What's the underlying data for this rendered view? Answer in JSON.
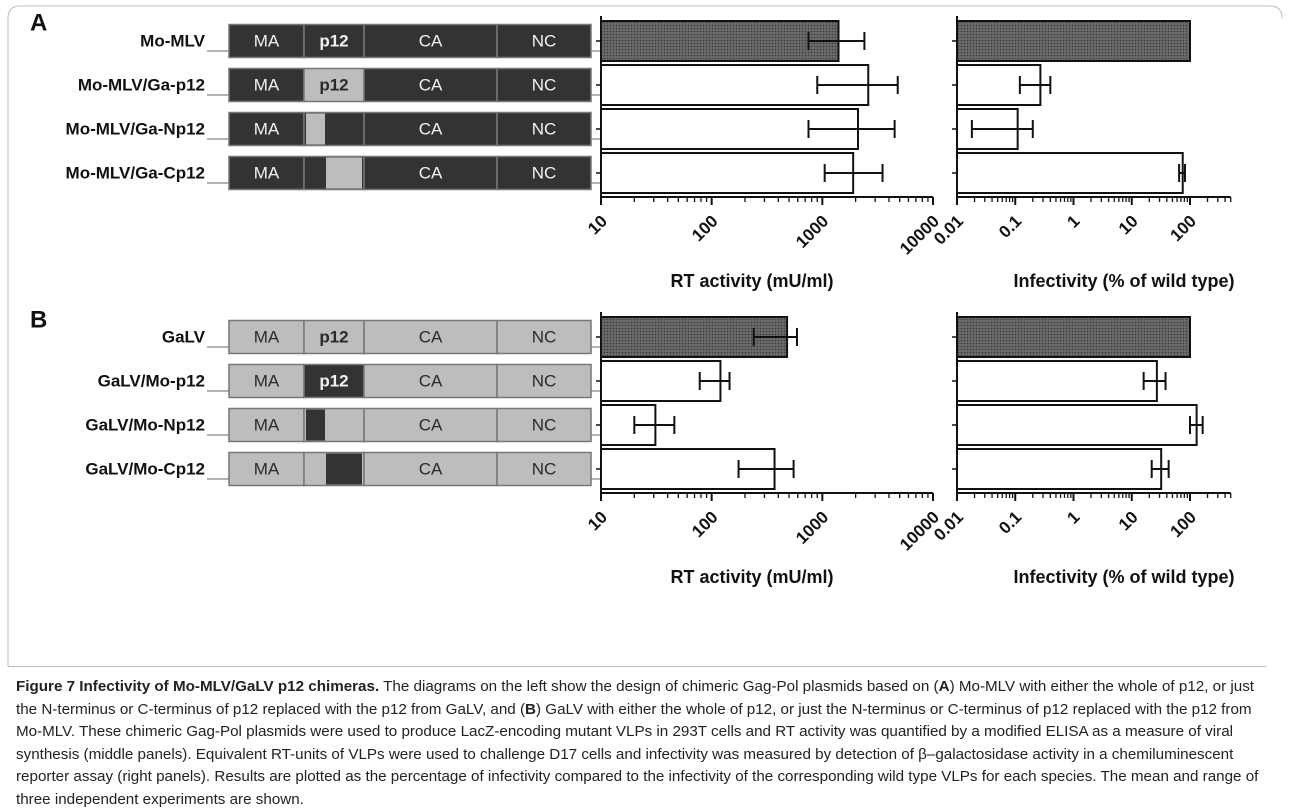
{
  "panels": [
    {
      "letter": "A",
      "constructs": [
        {
          "label": "Mo-MLV",
          "segments": [
            {
              "text": "MA",
              "fill": "dark"
            },
            {
              "text": "p12",
              "fill": "dark",
              "bold": true
            },
            {
              "text": "CA",
              "fill": "dark"
            },
            {
              "text": "NC",
              "fill": "dark"
            }
          ]
        },
        {
          "label": "Mo-MLV/Ga-p12",
          "segments": [
            {
              "text": "MA",
              "fill": "dark"
            },
            {
              "text": "p12",
              "fill": "light",
              "bold": true
            },
            {
              "text": "CA",
              "fill": "dark"
            },
            {
              "text": "NC",
              "fill": "dark"
            }
          ]
        },
        {
          "label": "Mo-MLV/Ga-Np12",
          "segments": [
            {
              "text": "MA",
              "fill": "dark"
            },
            {
              "text": "",
              "fill": "split-N-light"
            },
            {
              "text": "CA",
              "fill": "dark"
            },
            {
              "text": "NC",
              "fill": "dark"
            }
          ]
        },
        {
          "label": "Mo-MLV/Ga-Cp12",
          "segments": [
            {
              "text": "MA",
              "fill": "dark"
            },
            {
              "text": "",
              "fill": "split-C-light"
            },
            {
              "text": "CA",
              "fill": "dark"
            },
            {
              "text": "NC",
              "fill": "dark"
            }
          ]
        }
      ]
    },
    {
      "letter": "B",
      "constructs": [
        {
          "label": "GaLV",
          "segments": [
            {
              "text": "MA",
              "fill": "light"
            },
            {
              "text": "p12",
              "fill": "light",
              "bold": true
            },
            {
              "text": "CA",
              "fill": "light"
            },
            {
              "text": "NC",
              "fill": "light"
            }
          ]
        },
        {
          "label": "GaLV/Mo-p12",
          "segments": [
            {
              "text": "MA",
              "fill": "light"
            },
            {
              "text": "p12",
              "fill": "dark",
              "bold": true
            },
            {
              "text": "CA",
              "fill": "light"
            },
            {
              "text": "NC",
              "fill": "light"
            }
          ]
        },
        {
          "label": "GaLV/Mo-Np12",
          "segments": [
            {
              "text": "MA",
              "fill": "light"
            },
            {
              "text": "",
              "fill": "split-N-dark"
            },
            {
              "text": "CA",
              "fill": "light"
            },
            {
              "text": "NC",
              "fill": "light"
            }
          ]
        },
        {
          "label": "GaLV/Mo-Cp12",
          "segments": [
            {
              "text": "MA",
              "fill": "light"
            },
            {
              "text": "",
              "fill": "split-C-dark"
            },
            {
              "text": "CA",
              "fill": "light"
            },
            {
              "text": "NC",
              "fill": "light"
            }
          ]
        }
      ]
    }
  ],
  "colors": {
    "dark_segment": "#333333",
    "light_segment": "#bdbdbd",
    "dark_text": "#f2f2f2",
    "light_text": "#2a2a2a",
    "wildtype_bar": "#5e5e5e",
    "mutant_bar": "#ffffff"
  },
  "chart_data": [
    {
      "panel": "A",
      "type": "bar",
      "orientation": "horizontal",
      "scale": "log",
      "xlabel": "RT activity (mU/ml)",
      "xlim": [
        10,
        10000
      ],
      "ticks": [
        "10",
        "100",
        "1000",
        "10000"
      ],
      "categories": [
        "Mo-MLV",
        "Mo-MLV/Ga-p12",
        "Mo-MLV/Ga-Np12",
        "Mo-MLV/Ga-Cp12"
      ],
      "values": [
        1400,
        2600,
        2100,
        1900
      ],
      "error_low": [
        750,
        900,
        750,
        1050
      ],
      "error_high": [
        2400,
        4800,
        4500,
        3500
      ]
    },
    {
      "panel": "A",
      "type": "bar",
      "orientation": "horizontal",
      "scale": "log",
      "xlabel": "Infectivity (% of wild type)",
      "xlim": [
        0.01,
        500
      ],
      "ticks": [
        "0.01",
        "0.1",
        "1",
        "10",
        "100"
      ],
      "categories": [
        "Mo-MLV",
        "Mo-MLV/Ga-p12",
        "Mo-MLV/Ga-Np12",
        "Mo-MLV/Ga-Cp12"
      ],
      "values": [
        100,
        0.27,
        0.11,
        75
      ],
      "error_low": [
        null,
        0.12,
        0.018,
        65
      ],
      "error_high": [
        null,
        0.4,
        0.2,
        82
      ]
    },
    {
      "panel": "B",
      "type": "bar",
      "orientation": "horizontal",
      "scale": "log",
      "xlabel": "RT activity (mU/ml)",
      "xlim": [
        10,
        10000
      ],
      "ticks": [
        "10",
        "100",
        "1000",
        "10000"
      ],
      "categories": [
        "GaLV",
        "GaLV/Mo-p12",
        "GaLV/Mo-Np12",
        "GaLV/Mo-Cp12"
      ],
      "values": [
        480,
        120,
        31,
        370
      ],
      "error_low": [
        240,
        78,
        20,
        175
      ],
      "error_high": [
        590,
        145,
        46,
        550
      ]
    },
    {
      "panel": "B",
      "type": "bar",
      "orientation": "horizontal",
      "scale": "log",
      "xlabel": "Infectivity (% of wild type)",
      "xlim": [
        0.01,
        500
      ],
      "ticks": [
        "0.01",
        "0.1",
        "1",
        "10",
        "100"
      ],
      "categories": [
        "GaLV",
        "GaLV/Mo-p12",
        "GaLV/Mo-Np12",
        "GaLV/Mo-Cp12"
      ],
      "values": [
        100,
        27,
        130,
        32
      ],
      "error_low": [
        null,
        16,
        100,
        22
      ],
      "error_high": [
        null,
        38,
        165,
        43
      ]
    }
  ],
  "caption": {
    "title": "Figure 7 Infectivity of Mo-MLV/GaLV p12 chimeras.",
    "body_parts": [
      " The diagrams on the left show the design of chimeric Gag-Pol plasmids based on (",
      "A",
      ") Mo-MLV with either the whole of p12, or just the N-terminus or C-terminus of p12 replaced with the p12 from GaLV, and (",
      "B",
      ") GaLV with either the whole of p12, or just the N-terminus or C-terminus of p12 replaced with the p12 from Mo-MLV. These chimeric Gag-Pol plasmids were used to produce LacZ-encoding mutant VLPs in 293T cells and RT activity was quantified by a modified ELISA as a measure of viral synthesis (middle panels). Equivalent RT-units of VLPs were used to challenge D17 cells and infectivity was measured by detection of β–galactosidase activity in a chemiluminescent reporter assay (right panels). Results are plotted as the percentage of infectivity compared to the infectivity of the corresponding wild type VLPs for each species. The mean and range of three independent experiments are shown."
    ]
  }
}
